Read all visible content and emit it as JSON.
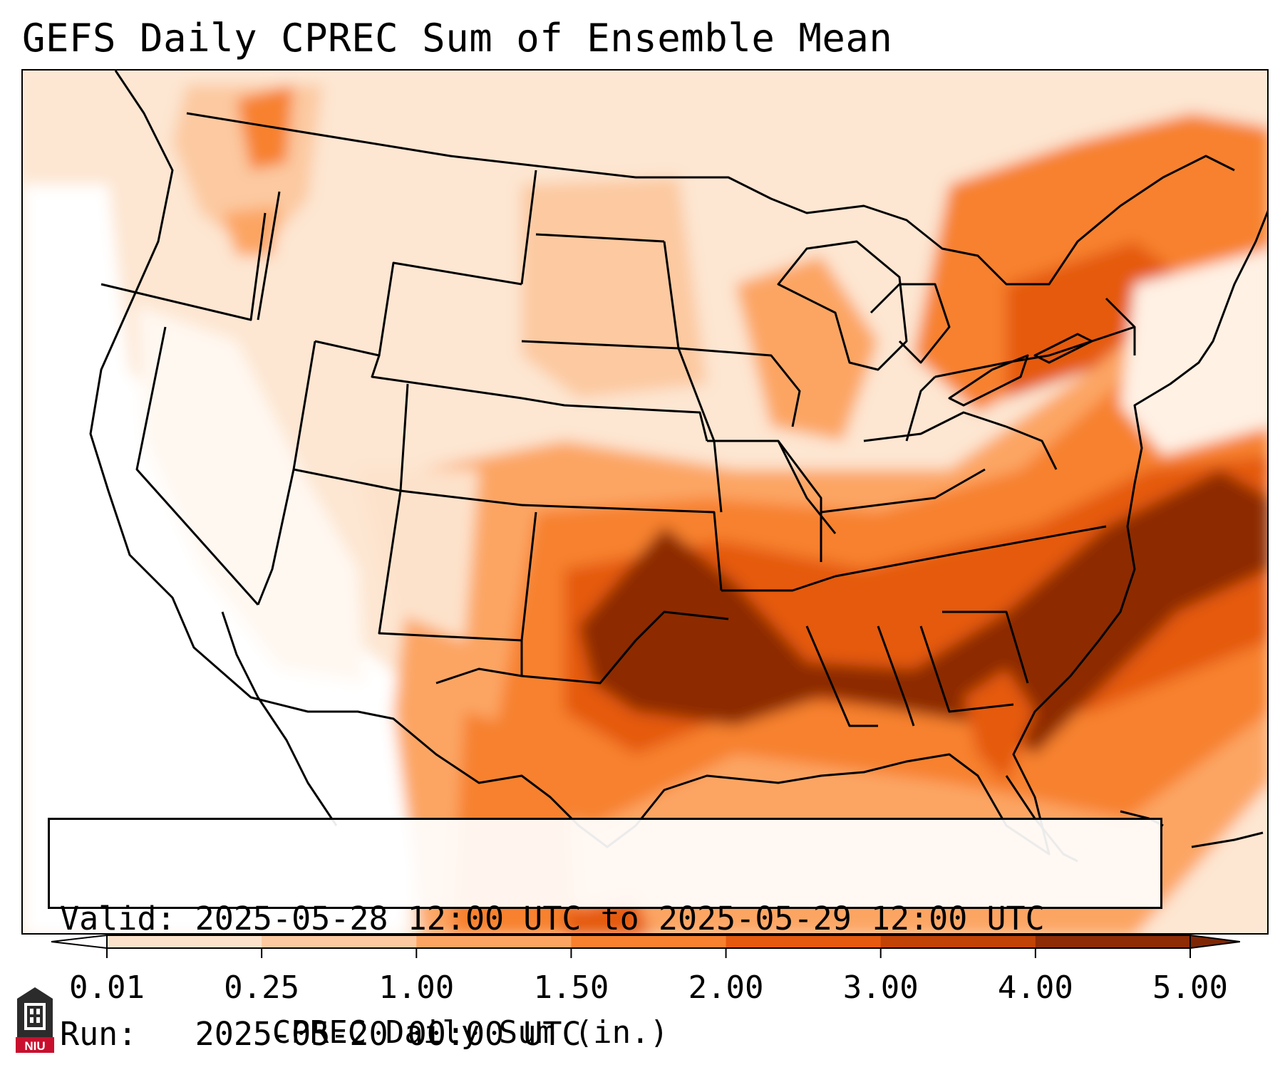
{
  "title": "GEFS Daily CPREC Sum of Ensemble Mean",
  "info": {
    "valid_label": "Valid:",
    "valid_value": "2025-05-28 12:00 UTC to 2025-05-29 12:00 UTC",
    "run_label": "Run:",
    "run_value": "2025-05-20 00:00 UTC"
  },
  "colorbar": {
    "title": "CPREC Daily Sum (in.)",
    "ticks": [
      "0.01",
      "0.25",
      "1.00",
      "1.50",
      "2.00",
      "3.00",
      "4.00",
      "5.00"
    ],
    "tick_values": [
      0.01,
      0.25,
      1.0,
      1.5,
      2.0,
      3.0,
      4.0,
      5.0
    ],
    "colors": [
      "#fef3e8",
      "#fde2cb",
      "#fcc9a0",
      "#fca563",
      "#f7812f",
      "#e55a0f",
      "#c24306",
      "#8d2c05"
    ],
    "under_color": "#ffffff",
    "over_color": "#7f2704",
    "extend": "both"
  },
  "logo_text": "NIU",
  "colors": {
    "map_background": "#fdebdc",
    "state_lines": "#000000",
    "heaviest_precip": "#8d2c05"
  }
}
